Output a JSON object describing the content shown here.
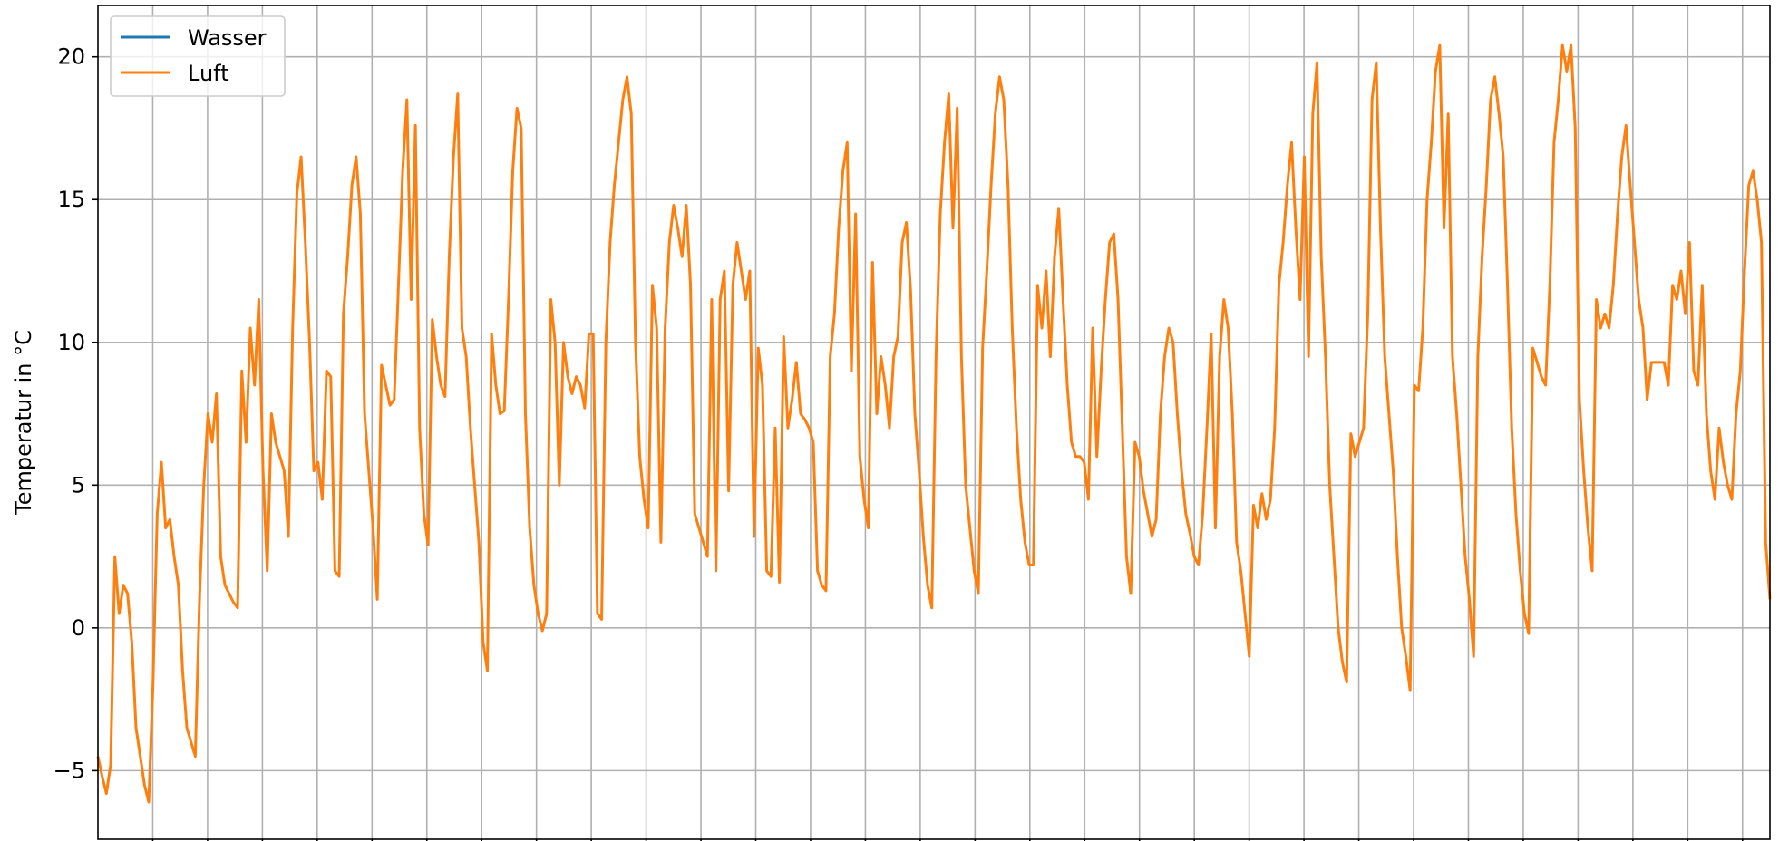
{
  "chart_data": {
    "type": "line",
    "title": "",
    "xlabel": "",
    "ylabel": "Temperatur in °C",
    "ylim": [
      -7.4,
      21.8
    ],
    "y_ticks": [
      -5,
      0,
      5,
      10,
      15,
      20
    ],
    "y_tick_labels": [
      "−5",
      "0",
      "5",
      "10",
      "15",
      "20"
    ],
    "x_tick_count": 30,
    "grid": true,
    "x_tick_labels_shown": false,
    "legend": {
      "position": "upper-left"
    },
    "series": [
      {
        "name": "Wasser",
        "color": "#1f77b4",
        "values": []
      },
      {
        "name": "Luft",
        "color": "#ff7f0e",
        "values": [
          -4.5,
          -5.2,
          -5.8,
          -4.8,
          2.5,
          0.5,
          1.5,
          1.2,
          -0.5,
          -3.5,
          -4.5,
          -5.5,
          -6.1,
          -2.0,
          4.0,
          5.8,
          3.5,
          3.8,
          2.5,
          1.5,
          -1.5,
          -3.5,
          -4.0,
          -4.5,
          1.0,
          5.0,
          7.5,
          6.5,
          8.2,
          2.5,
          1.5,
          1.2,
          0.9,
          0.7,
          9.0,
          6.5,
          10.5,
          8.5,
          11.5,
          5.5,
          2.0,
          7.5,
          6.5,
          6.0,
          5.5,
          3.2,
          10.5,
          15.2,
          16.5,
          13.5,
          10.0,
          5.5,
          5.8,
          4.5,
          9.0,
          8.8,
          2.0,
          1.8,
          11.0,
          13.0,
          15.5,
          16.5,
          14.5,
          7.5,
          5.5,
          3.5,
          1.0,
          9.2,
          8.5,
          7.8,
          8.0,
          12.0,
          16.0,
          18.5,
          11.5,
          17.6,
          7.0,
          4.0,
          2.9,
          10.8,
          9.5,
          8.5,
          8.1,
          13.0,
          16.5,
          18.7,
          10.5,
          9.5,
          7.0,
          5.0,
          3.0,
          -0.5,
          -1.5,
          10.3,
          8.5,
          7.5,
          7.6,
          11.5,
          16.0,
          18.2,
          17.5,
          7.5,
          3.5,
          1.5,
          0.5,
          -0.1,
          0.5,
          11.5,
          10.0,
          5.0,
          10.0,
          8.8,
          8.2,
          8.8,
          8.5,
          7.7,
          10.3,
          10.3,
          0.5,
          0.3,
          10.0,
          13.5,
          15.5,
          17.0,
          18.5,
          19.3,
          18.0,
          10.0,
          6.0,
          4.5,
          3.5,
          12.0,
          10.5,
          3.0,
          10.5,
          13.5,
          14.8,
          14.0,
          13.0,
          14.8,
          12.0,
          4.0,
          3.5,
          3.0,
          2.5,
          11.5,
          2.0,
          11.5,
          12.5,
          4.8,
          12.0,
          13.5,
          12.5,
          11.5,
          12.5,
          3.2,
          9.8,
          8.5,
          2.0,
          1.8,
          7.0,
          1.6,
          10.2,
          7.0,
          8.0,
          9.3,
          7.5,
          7.3,
          7.0,
          6.5,
          2.0,
          1.5,
          1.3,
          9.5,
          11.0,
          14.0,
          16.0,
          17.0,
          9.0,
          14.5,
          6.0,
          4.5,
          3.5,
          12.8,
          7.5,
          9.5,
          8.5,
          7.0,
          9.5,
          10.2,
          13.5,
          14.2,
          11.8,
          7.5,
          5.5,
          3.2,
          1.5,
          0.7,
          9.5,
          14.5,
          17.0,
          18.7,
          14.0,
          18.2,
          9.5,
          5.0,
          3.5,
          2.0,
          1.2,
          9.8,
          12.5,
          15.5,
          18.0,
          19.3,
          18.5,
          15.5,
          10.5,
          7.0,
          4.5,
          3.0,
          2.2,
          2.2,
          12.0,
          10.5,
          12.5,
          9.5,
          13.0,
          14.7,
          11.5,
          8.5,
          6.5,
          6.0,
          6.0,
          5.8,
          4.5,
          10.5,
          6.0,
          9.0,
          11.5,
          13.5,
          13.8,
          11.5,
          7.0,
          2.5,
          1.2,
          6.5,
          6.0,
          4.8,
          4.0,
          3.2,
          3.8,
          7.5,
          9.5,
          10.5,
          10.0,
          7.5,
          5.5,
          4.0,
          3.3,
          2.5,
          2.2,
          4.0,
          7.0,
          10.3,
          3.5,
          9.5,
          11.5,
          10.5,
          7.5,
          3.0,
          2.0,
          0.5,
          -1.0,
          4.3,
          3.5,
          4.7,
          3.8,
          4.5,
          7.0,
          12.0,
          13.5,
          15.5,
          17.0,
          14.0,
          11.5,
          16.5,
          9.5,
          18.0,
          19.8,
          13.0,
          9.5,
          5.0,
          2.5,
          0.0,
          -1.2,
          -1.9,
          6.8,
          6.0,
          6.5,
          7.0,
          11.0,
          18.5,
          19.8,
          14.0,
          9.5,
          7.5,
          5.5,
          2.5,
          0.0,
          -1.0,
          -2.2,
          8.5,
          8.3,
          10.5,
          15.0,
          17.0,
          19.5,
          20.4,
          14.0,
          18.0,
          9.5,
          7.5,
          5.0,
          2.5,
          1.0,
          -1.0,
          9.5,
          13.0,
          15.5,
          18.5,
          19.3,
          18.0,
          16.5,
          12.0,
          7.0,
          4.0,
          2.0,
          0.5,
          -0.2,
          9.8,
          9.3,
          8.8,
          8.5,
          12.0,
          17.0,
          18.5,
          20.4,
          19.5,
          20.4,
          17.5,
          8.0,
          5.5,
          3.5,
          2.0,
          11.5,
          10.5,
          11.0,
          10.5,
          12.0,
          14.5,
          16.5,
          17.6,
          15.5,
          13.5,
          11.5,
          10.5,
          8.0,
          9.3,
          9.3,
          9.3,
          9.3,
          8.5,
          12.0,
          11.5,
          12.5,
          11.0,
          13.5,
          9.0,
          8.5,
          12.0,
          7.5,
          5.5,
          4.5,
          7.0,
          5.8,
          5.0,
          4.5,
          7.5,
          9.0,
          12.5,
          15.5,
          16.0,
          15.0,
          13.5,
          3.0,
          1.0
        ]
      }
    ]
  }
}
